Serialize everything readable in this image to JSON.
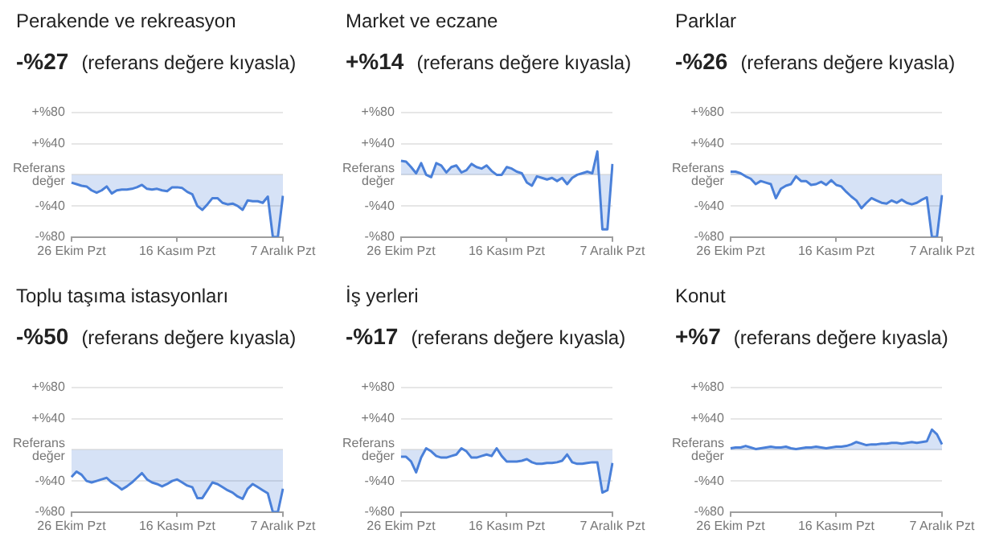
{
  "chart_data": [
    {
      "type": "area",
      "title": "Perakende ve rekreasyon",
      "subtitle": "-%27 (referans değere kıyasla)",
      "categories": [
        "26 Ekim Pzt",
        null,
        null,
        null,
        null,
        null,
        null,
        null,
        null,
        null,
        null,
        null,
        null,
        null,
        null,
        null,
        null,
        null,
        null,
        null,
        null,
        "16 Kasım Pzt",
        null,
        null,
        null,
        null,
        null,
        null,
        null,
        null,
        null,
        null,
        null,
        null,
        null,
        null,
        null,
        null,
        null,
        null,
        null,
        null,
        "7 Aralık Pzt"
      ],
      "ylim": [
        -80,
        80
      ],
      "yticks": [
        {
          "value": -80,
          "label": "-%80"
        },
        {
          "value": -40,
          "label": "-%40"
        },
        {
          "value": 0,
          "label": "Referans değer"
        },
        {
          "value": 40,
          "label": "+%40"
        },
        {
          "value": 80,
          "label": "+%80"
        }
      ],
      "grid": "y",
      "marker": "none",
      "line_style": "solid",
      "series": [
        {
          "color": "#4a80d9",
          "values": [
            -10,
            -12,
            -14,
            -15,
            -20,
            -23,
            -20,
            -15,
            -24,
            -20,
            -19,
            -19,
            -18,
            -16,
            -13,
            -18,
            -19,
            -18,
            -20,
            -21,
            -16,
            -16,
            -17,
            -22,
            -25,
            -40,
            -45,
            -38,
            -30,
            -30,
            -36,
            -38,
            -37,
            -40,
            -45,
            -33,
            -34,
            -34,
            -36,
            -28,
            -80,
            -80,
            -27
          ]
        }
      ]
    },
    {
      "type": "area",
      "title": "Market ve eczane",
      "subtitle": "+%14 (referans değere kıyasla)",
      "categories": [
        "26 Ekim Pzt",
        null,
        null,
        null,
        null,
        null,
        null,
        null,
        null,
        null,
        null,
        null,
        null,
        null,
        null,
        null,
        null,
        null,
        null,
        null,
        null,
        "16 Kasım Pzt",
        null,
        null,
        null,
        null,
        null,
        null,
        null,
        null,
        null,
        null,
        null,
        null,
        null,
        null,
        null,
        null,
        null,
        null,
        null,
        null,
        "7 Aralık Pzt"
      ],
      "ylim": [
        -80,
        80
      ],
      "yticks": [
        {
          "value": -80,
          "label": "-%80"
        },
        {
          "value": -40,
          "label": "-%40"
        },
        {
          "value": 0,
          "label": "Referans değer"
        },
        {
          "value": 40,
          "label": "+%40"
        },
        {
          "value": 80,
          "label": "+%80"
        }
      ],
      "grid": "y",
      "marker": "none",
      "line_style": "solid",
      "series": [
        {
          "color": "#4a80d9",
          "values": [
            18,
            17,
            10,
            2,
            15,
            0,
            -3,
            15,
            12,
            3,
            10,
            12,
            3,
            6,
            14,
            10,
            8,
            12,
            5,
            0,
            0,
            10,
            8,
            4,
            2,
            -10,
            -14,
            -2,
            -4,
            -6,
            -4,
            -8,
            -4,
            -12,
            -4,
            0,
            2,
            4,
            2,
            30,
            -70,
            -70,
            14
          ]
        }
      ]
    },
    {
      "type": "area",
      "title": "Parklar",
      "subtitle": "-%26 (referans değere kıyasla)",
      "categories": [
        "26 Ekim Pzt",
        null,
        null,
        null,
        null,
        null,
        null,
        null,
        null,
        null,
        null,
        null,
        null,
        null,
        null,
        null,
        null,
        null,
        null,
        null,
        null,
        "16 Kasım Pzt",
        null,
        null,
        null,
        null,
        null,
        null,
        null,
        null,
        null,
        null,
        null,
        null,
        null,
        null,
        null,
        null,
        null,
        null,
        null,
        null,
        "7 Aralık Pzt"
      ],
      "ylim": [
        -80,
        80
      ],
      "yticks": [
        {
          "value": -80,
          "label": "-%80"
        },
        {
          "value": -40,
          "label": "-%40"
        },
        {
          "value": 0,
          "label": "Referans değer"
        },
        {
          "value": 40,
          "label": "+%40"
        },
        {
          "value": 80,
          "label": "+%80"
        }
      ],
      "grid": "y",
      "marker": "none",
      "line_style": "solid",
      "series": [
        {
          "color": "#4a80d9",
          "values": [
            4,
            4,
            2,
            -2,
            -5,
            -12,
            -8,
            -10,
            -12,
            -30,
            -18,
            -14,
            -12,
            -2,
            -8,
            -8,
            -13,
            -12,
            -9,
            -13,
            -7,
            -13,
            -15,
            -22,
            -28,
            -33,
            -43,
            -36,
            -30,
            -33,
            -36,
            -37,
            -33,
            -36,
            -32,
            -36,
            -38,
            -36,
            -32,
            -29,
            -80,
            -80,
            -26
          ]
        }
      ]
    },
    {
      "type": "area",
      "title": "Toplu taşıma istasyonları",
      "subtitle": "-%50 (referans değere kıyasla)",
      "categories": [
        "26 Ekim Pzt",
        null,
        null,
        null,
        null,
        null,
        null,
        null,
        null,
        null,
        null,
        null,
        null,
        null,
        null,
        null,
        null,
        null,
        null,
        null,
        null,
        "16 Kasım Pzt",
        null,
        null,
        null,
        null,
        null,
        null,
        null,
        null,
        null,
        null,
        null,
        null,
        null,
        null,
        null,
        null,
        null,
        null,
        null,
        null,
        "7 Aralık Pzt"
      ],
      "ylim": [
        -80,
        80
      ],
      "yticks": [
        {
          "value": -80,
          "label": "-%80"
        },
        {
          "value": -40,
          "label": "-%40"
        },
        {
          "value": 0,
          "label": "Referans değer"
        },
        {
          "value": 40,
          "label": "+%40"
        },
        {
          "value": 80,
          "label": "+%80"
        }
      ],
      "grid": "y",
      "marker": "none",
      "line_style": "solid",
      "series": [
        {
          "color": "#4a80d9",
          "values": [
            -35,
            -28,
            -32,
            -40,
            -42,
            -40,
            -38,
            -36,
            -42,
            -46,
            -51,
            -47,
            -42,
            -36,
            -30,
            -38,
            -42,
            -44,
            -47,
            -44,
            -40,
            -38,
            -42,
            -46,
            -48,
            -62,
            -62,
            -52,
            -42,
            -44,
            -48,
            -52,
            -55,
            -60,
            -63,
            -50,
            -44,
            -48,
            -52,
            -56,
            -80,
            -80,
            -50
          ]
        }
      ]
    },
    {
      "type": "area",
      "title": "İş yerleri",
      "subtitle": "-%17 (referans değere kıyasla)",
      "categories": [
        "26 Ekim Pzt",
        null,
        null,
        null,
        null,
        null,
        null,
        null,
        null,
        null,
        null,
        null,
        null,
        null,
        null,
        null,
        null,
        null,
        null,
        null,
        null,
        "16 Kasım Pzt",
        null,
        null,
        null,
        null,
        null,
        null,
        null,
        null,
        null,
        null,
        null,
        null,
        null,
        null,
        null,
        null,
        null,
        null,
        null,
        null,
        "7 Aralık Pzt"
      ],
      "ylim": [
        -80,
        80
      ],
      "yticks": [
        {
          "value": -80,
          "label": "-%80"
        },
        {
          "value": -40,
          "label": "-%40"
        },
        {
          "value": 0,
          "label": "Referans değer"
        },
        {
          "value": 40,
          "label": "+%40"
        },
        {
          "value": 80,
          "label": "+%80"
        }
      ],
      "grid": "y",
      "marker": "none",
      "line_style": "solid",
      "series": [
        {
          "color": "#4a80d9",
          "values": [
            -9,
            -9,
            -15,
            -29,
            -10,
            2,
            -2,
            -8,
            -10,
            -10,
            -8,
            -6,
            2,
            -2,
            -10,
            -10,
            -8,
            -6,
            -8,
            2,
            -8,
            -15,
            -15,
            -15,
            -14,
            -12,
            -16,
            -18,
            -18,
            -17,
            -17,
            -16,
            -14,
            -6,
            -16,
            -18,
            -18,
            -17,
            -16,
            -16,
            -55,
            -52,
            -17
          ]
        }
      ]
    },
    {
      "type": "area",
      "title": "Konut",
      "subtitle": "+%7 (referans değere kıyasla)",
      "categories": [
        "26 Ekim Pzt",
        null,
        null,
        null,
        null,
        null,
        null,
        null,
        null,
        null,
        null,
        null,
        null,
        null,
        null,
        null,
        null,
        null,
        null,
        null,
        null,
        "16 Kasım Pzt",
        null,
        null,
        null,
        null,
        null,
        null,
        null,
        null,
        null,
        null,
        null,
        null,
        null,
        null,
        null,
        null,
        null,
        null,
        null,
        null,
        "7 Aralık Pzt"
      ],
      "ylim": [
        -80,
        80
      ],
      "yticks": [
        {
          "value": -80,
          "label": "-%80"
        },
        {
          "value": -40,
          "label": "-%40"
        },
        {
          "value": 0,
          "label": "Referans değer"
        },
        {
          "value": 40,
          "label": "+%40"
        },
        {
          "value": 80,
          "label": "+%80"
        }
      ],
      "grid": "y",
      "marker": "none",
      "line_style": "solid",
      "series": [
        {
          "color": "#4a80d9",
          "values": [
            2,
            3,
            3,
            5,
            3,
            1,
            2,
            3,
            4,
            3,
            3,
            4,
            2,
            1,
            2,
            3,
            3,
            4,
            3,
            2,
            3,
            4,
            4,
            5,
            7,
            10,
            8,
            6,
            7,
            7,
            8,
            8,
            9,
            9,
            8,
            9,
            10,
            9,
            10,
            11,
            26,
            20,
            7
          ]
        }
      ]
    }
  ]
}
